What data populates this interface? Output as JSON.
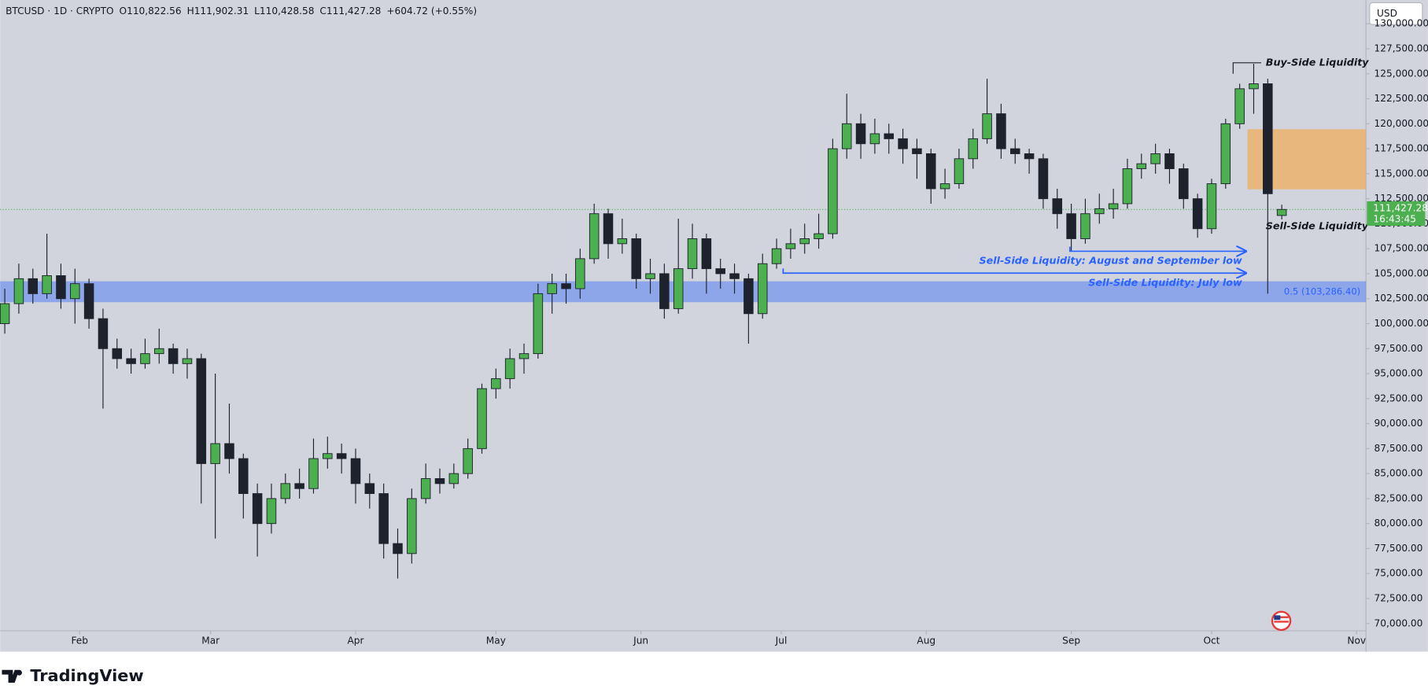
{
  "header": {
    "symbol": "BTCUSD · 1D · CRYPTO",
    "open": "O110,822.56",
    "high": "H111,902.31",
    "low": "L110,428.58",
    "close": "C111,427.28",
    "change": "+604.72 (+0.55%)"
  },
  "currency": "USD",
  "brand": "TradingView",
  "chart_data": {
    "type": "candlestick",
    "x": [
      16,
      19,
      22,
      25,
      28,
      31,
      34,
      37,
      40,
      43,
      46,
      49,
      52,
      55,
      58,
      61,
      64,
      67,
      70,
      73,
      76,
      79,
      82,
      85,
      88,
      91,
      94,
      97,
      100,
      103,
      106,
      109,
      112,
      115,
      118,
      121,
      124,
      127,
      130,
      133,
      136,
      139,
      142,
      145,
      148,
      151,
      154,
      157,
      160,
      163,
      166,
      169,
      172,
      175,
      178,
      181,
      184,
      187,
      190,
      193,
      196,
      199,
      202,
      205,
      208,
      211,
      214,
      217,
      220,
      223,
      226,
      229,
      232,
      235,
      238,
      241,
      244,
      247,
      250,
      253,
      256,
      259,
      262,
      265,
      268,
      271,
      274,
      277,
      280,
      283,
      286,
      289
    ],
    "open": [
      100000,
      102000,
      104500,
      103000,
      104800,
      102500,
      104000,
      100500,
      97500,
      96500,
      96000,
      97000,
      97500,
      96000,
      96500,
      86000,
      88000,
      86500,
      83000,
      80000,
      82500,
      84000,
      83500,
      86500,
      87000,
      86500,
      84000,
      83000,
      78000,
      77000,
      82500,
      84500,
      84000,
      85000,
      87500,
      93500,
      94500,
      96500,
      97000,
      103000,
      104000,
      103500,
      106500,
      111000,
      108000,
      108500,
      104500,
      105000,
      101500,
      105500,
      108500,
      105500,
      105000,
      104500,
      101000,
      106000,
      107500,
      108000,
      108500,
      109000,
      117500,
      120000,
      118000,
      119000,
      118500,
      117500,
      117000,
      113500,
      114000,
      116500,
      118500,
      121000,
      117500,
      117000,
      116500,
      112500,
      111000,
      108500,
      111000,
      111500,
      112000,
      115500,
      116000,
      117000,
      115500,
      112500,
      109500,
      114000,
      120000,
      123500,
      124000,
      110822.56
    ],
    "high": [
      103500,
      106000,
      105500,
      109000,
      106000,
      105500,
      104500,
      101500,
      98500,
      97500,
      98500,
      99500,
      98000,
      97500,
      97000,
      95000,
      92000,
      87000,
      84000,
      84000,
      85000,
      85500,
      88500,
      88700,
      88000,
      87500,
      85000,
      84000,
      79500,
      83500,
      86000,
      85500,
      86000,
      88500,
      94000,
      95500,
      97500,
      98000,
      104000,
      105000,
      105000,
      107500,
      112000,
      111500,
      110500,
      109000,
      106500,
      106000,
      110500,
      110000,
      109000,
      106500,
      106000,
      105000,
      107000,
      108500,
      109500,
      110000,
      111000,
      118500,
      123000,
      121000,
      120500,
      120000,
      119500,
      118500,
      117500,
      115500,
      117500,
      119500,
      124500,
      122000,
      118500,
      117500,
      117000,
      113500,
      112000,
      112500,
      113000,
      113500,
      116500,
      117000,
      118000,
      117500,
      116000,
      113000,
      114500,
      120500,
      124000,
      126000,
      124500,
      111902.31
    ],
    "low": [
      99000,
      101000,
      102000,
      102500,
      101500,
      100000,
      99500,
      91500,
      95500,
      95000,
      95500,
      96000,
      95000,
      94500,
      82000,
      78500,
      85000,
      80500,
      76700,
      79000,
      82000,
      82500,
      83000,
      85500,
      85000,
      82000,
      81500,
      76500,
      74500,
      76000,
      82000,
      83000,
      83500,
      84500,
      87000,
      92500,
      93500,
      95000,
      96500,
      101000,
      102000,
      102500,
      106000,
      106500,
      107000,
      103500,
      103000,
      100500,
      101000,
      104500,
      103000,
      103500,
      103000,
      98000,
      100500,
      105500,
      106500,
      107000,
      107500,
      108500,
      116500,
      116500,
      117000,
      117000,
      116000,
      114500,
      112000,
      112500,
      113500,
      115500,
      118000,
      116500,
      116000,
      115000,
      111500,
      109500,
      107300,
      108000,
      110000,
      110500,
      111500,
      114500,
      115000,
      114000,
      111500,
      108600,
      109000,
      113500,
      119500,
      121000,
      103000,
      110428.58
    ],
    "close": [
      102000,
      104500,
      103000,
      104800,
      102500,
      104000,
      100500,
      97500,
      96500,
      96000,
      97000,
      97500,
      96000,
      96500,
      86000,
      88000,
      86500,
      83000,
      80000,
      82500,
      84000,
      83500,
      86500,
      87000,
      86500,
      84000,
      83000,
      78000,
      77000,
      82500,
      84500,
      84000,
      85000,
      87500,
      93500,
      94500,
      96500,
      97000,
      103000,
      104000,
      103500,
      106500,
      111000,
      108000,
      108500,
      104500,
      105000,
      101500,
      105500,
      108500,
      105500,
      105000,
      104500,
      101000,
      106000,
      107500,
      108000,
      108500,
      109000,
      117500,
      120000,
      118000,
      119000,
      118500,
      117500,
      117000,
      113500,
      114000,
      116500,
      118500,
      121000,
      117500,
      117000,
      116500,
      112500,
      111000,
      108500,
      111000,
      111500,
      112000,
      115500,
      116000,
      117000,
      115500,
      112500,
      109500,
      114000,
      120000,
      123500,
      124000,
      113000,
      111427.28
    ],
    "up_color": "#4caf50",
    "down_color": "#1e222d",
    "xlim": [
      15,
      307
    ],
    "xticks": [
      {
        "value": 32,
        "label": "Feb"
      },
      {
        "value": 60,
        "label": "Mar"
      },
      {
        "value": 91,
        "label": "Apr"
      },
      {
        "value": 121,
        "label": "May"
      },
      {
        "value": 152,
        "label": "Jun"
      },
      {
        "value": 182,
        "label": "Jul"
      },
      {
        "value": 213,
        "label": "Aug"
      },
      {
        "value": 244,
        "label": "Sep"
      },
      {
        "value": 274,
        "label": "Oct"
      },
      {
        "value": 305,
        "label": "Nov"
      }
    ],
    "ylim": [
      69270,
      132380
    ],
    "yticks": [
      {
        "value": 70000,
        "label": "70,000.00"
      },
      {
        "value": 72500,
        "label": "72,500.00"
      },
      {
        "value": 75000,
        "label": "75,000.00"
      },
      {
        "value": 77500,
        "label": "77,500.00"
      },
      {
        "value": 80000,
        "label": "80,000.00"
      },
      {
        "value": 82500,
        "label": "82,500.00"
      },
      {
        "value": 85000,
        "label": "85,000.00"
      },
      {
        "value": 87500,
        "label": "87,500.00"
      },
      {
        "value": 90000,
        "label": "90,000.00"
      },
      {
        "value": 92500,
        "label": "92,500.00"
      },
      {
        "value": 95000,
        "label": "95,000.00"
      },
      {
        "value": 97500,
        "label": "97,500.00"
      },
      {
        "value": 100000,
        "label": "100,000.00"
      },
      {
        "value": 102500,
        "label": "102,500.00"
      },
      {
        "value": 105000,
        "label": "105,000.00"
      },
      {
        "value": 107500,
        "label": "107,500.00"
      },
      {
        "value": 110000,
        "label": "110,000.00"
      },
      {
        "value": 112500,
        "label": "112,500.00"
      },
      {
        "value": 115000,
        "label": "115,000.00"
      },
      {
        "value": 117500,
        "label": "117,500.00"
      },
      {
        "value": 120000,
        "label": "120,000.00"
      },
      {
        "value": 122500,
        "label": "122,500.00"
      },
      {
        "value": 125000,
        "label": "125,000.00"
      },
      {
        "value": 127500,
        "label": "127,500.00"
      },
      {
        "value": 130000,
        "label": "130,000.00"
      }
    ],
    "grid": false,
    "last_price": {
      "value": 111427.28,
      "label": "111,427.28",
      "countdown": "16:43:45",
      "color": "#4caf50"
    },
    "fib_zone": {
      "low": 102150,
      "high": 104240,
      "label": "0.5 (103,286.40)",
      "color": "#2962ff"
    },
    "supply_zone": {
      "low": 113440,
      "high": 119450,
      "x": [
        281.7,
        307
      ],
      "color": "#f7a440"
    },
    "buy_side": {
      "text": "Buy-Side Liquidity",
      "price": 126100,
      "x": [
        278.6,
        284.6
      ]
    },
    "sell_side": {
      "text": "Sell-Side Liquidity",
      "price": 109700,
      "x": 284.6
    },
    "arrows": [
      {
        "text": "Sell-Side Liquidity: August and September low",
        "price": 107245,
        "x": [
          243.7,
          281.3
        ]
      },
      {
        "text": "Sell-Side Liquidity: July low",
        "price": 105060,
        "x": [
          182.4,
          281.3
        ]
      }
    ]
  }
}
